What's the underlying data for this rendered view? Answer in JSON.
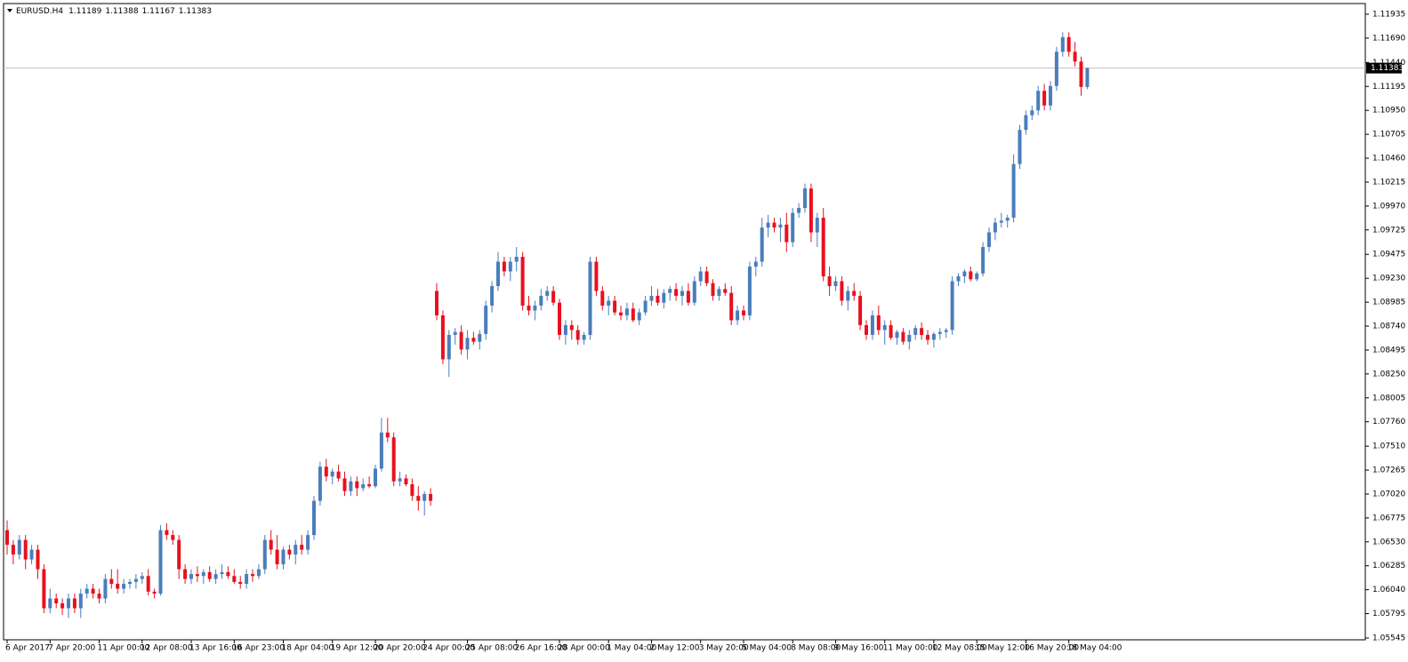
{
  "chart_data": {
    "type": "candlestick",
    "title": "EURUSD.H4",
    "header_values": [
      1.11189,
      1.11388,
      1.11167,
      1.11383
    ],
    "last_price": 1.11383,
    "up_color": "#4a7ebb",
    "down_color": "#e8101f",
    "last_price_line_color": "#c0c0c0",
    "ylim": [
      1.05527,
      1.12044
    ],
    "yticks": [
      1.11935,
      {
        "value": 1.1169,
        "label": "1.11690"
      },
      {
        "value": 1.1144,
        "label": "1.11440"
      },
      1.11195,
      {
        "value": 1.1095,
        "label": "1.10950"
      },
      1.10705,
      {
        "value": 1.1046,
        "label": "1.10460"
      },
      1.10215,
      {
        "value": 1.0997,
        "label": "1.09970"
      },
      1.09725,
      1.09475,
      {
        "value": 1.0923,
        "label": "1.09230"
      },
      1.08985,
      {
        "value": 1.0874,
        "label": "1.08740"
      },
      1.08495,
      {
        "value": 1.0825,
        "label": "1.08250"
      },
      1.08005,
      {
        "value": 1.0776,
        "label": "1.07760"
      },
      {
        "value": 1.0751,
        "label": "1.07510"
      },
      1.07265,
      {
        "value": 1.0702,
        "label": "1.07020"
      },
      1.06775,
      {
        "value": 1.0653,
        "label": "1.06530"
      },
      1.06285,
      {
        "value": 1.0604,
        "label": "1.06040"
      },
      1.05795,
      1.05545
    ],
    "categories": [
      "6 Apr 2017",
      null,
      null,
      null,
      null,
      null,
      null,
      "7 Apr 20:00",
      null,
      null,
      null,
      null,
      null,
      null,
      null,
      "11 Apr 00:00",
      null,
      null,
      null,
      null,
      null,
      null,
      "12 Apr 08:00",
      null,
      null,
      null,
      null,
      null,
      null,
      null,
      "13 Apr 16:00",
      null,
      null,
      null,
      null,
      null,
      null,
      "16 Apr 23:00",
      null,
      null,
      null,
      null,
      null,
      null,
      null,
      "18 Apr 04:00",
      null,
      null,
      null,
      null,
      null,
      null,
      null,
      "19 Apr 12:00",
      null,
      null,
      null,
      null,
      null,
      null,
      "20 Apr 20:00",
      null,
      null,
      null,
      null,
      null,
      null,
      null,
      "24 Apr 00:00",
      null,
      null,
      null,
      null,
      null,
      null,
      "25 Apr 08:00",
      null,
      null,
      null,
      null,
      null,
      null,
      null,
      "26 Apr 16:00",
      null,
      null,
      null,
      null,
      null,
      null,
      "28 Apr 00:00",
      null,
      null,
      null,
      null,
      null,
      null,
      null,
      "1 May 04:00",
      null,
      null,
      null,
      null,
      null,
      null,
      "2 May 12:00",
      null,
      null,
      null,
      null,
      null,
      null,
      null,
      "3 May 20:00",
      null,
      null,
      null,
      null,
      null,
      null,
      "5 May 04:00",
      null,
      null,
      null,
      null,
      null,
      null,
      null,
      "8 May 08:00",
      null,
      null,
      null,
      null,
      null,
      null,
      "9 May 16:00",
      null,
      null,
      null,
      null,
      null,
      null,
      null,
      "11 May 00:00",
      null,
      null,
      null,
      null,
      null,
      null,
      null,
      "12 May 08:00",
      null,
      null,
      null,
      null,
      null,
      null,
      "15 May 12:00",
      null,
      null,
      null,
      null,
      null,
      null,
      null,
      "16 May 20:00",
      null,
      null,
      null,
      null,
      null,
      null,
      "18 May 04:00",
      null,
      null,
      null
    ],
    "open": [
      1.0665,
      1.065,
      1.064,
      1.0655,
      1.0635,
      1.0645,
      1.0625,
      1.0585,
      1.0595,
      1.059,
      1.0585,
      1.0595,
      1.0585,
      1.06,
      1.0605,
      1.06,
      1.0595,
      1.0615,
      1.061,
      1.0605,
      1.061,
      1.0612,
      1.0615,
      1.0618,
      1.0602,
      1.06,
      1.0665,
      1.066,
      1.0655,
      1.0625,
      1.0615,
      1.062,
      1.0618,
      1.0622,
      1.0615,
      1.062,
      1.0622,
      1.0618,
      1.0612,
      1.061,
      1.062,
      1.0618,
      1.0625,
      1.0655,
      1.0645,
      1.063,
      1.0645,
      1.064,
      1.065,
      1.0645,
      1.066,
      1.0695,
      1.073,
      1.072,
      1.0725,
      1.0718,
      1.0705,
      1.0715,
      1.0708,
      1.0712,
      1.071,
      1.0728,
      1.0765,
      1.076,
      1.0715,
      1.0718,
      1.0712,
      1.07,
      1.0695,
      1.0702,
      1.091,
      1.0885,
      1.084,
      1.0865,
      1.0868,
      1.085,
      1.0862,
      1.0858,
      1.0866,
      1.0895,
      1.0915,
      1.094,
      1.093,
      1.094,
      1.0945,
      1.0895,
      1.089,
      1.0895,
      1.0905,
      1.091,
      1.0898,
      1.0865,
      1.0875,
      1.087,
      1.086,
      1.0865,
      1.094,
      1.091,
      1.0895,
      1.09,
      1.0888,
      1.0885,
      1.0892,
      1.088,
      1.0888,
      1.09,
      1.0905,
      1.0898,
      1.0908,
      1.0912,
      1.0905,
      1.091,
      1.0898,
      1.092,
      1.093,
      1.0918,
      1.0905,
      1.0912,
      1.0908,
      1.088,
      1.089,
      1.0885,
      1.0935,
      1.094,
      1.0975,
      1.098,
      1.0975,
      1.0978,
      1.096,
      1.099,
      1.0995,
      1.1015,
      1.097,
      1.0985,
      1.0925,
      1.0915,
      1.092,
      1.09,
      1.091,
      1.0905,
      1.0875,
      1.0865,
      1.0885,
      1.087,
      1.0875,
      1.0862,
      1.0868,
      1.0858,
      1.0865,
      1.0872,
      1.0865,
      1.086,
      1.0866,
      1.0868,
      1.087,
      1.092,
      1.0925,
      1.093,
      1.0922,
      1.0928,
      1.0955,
      1.097,
      1.098,
      1.0982,
      1.0985,
      1.104,
      1.1075,
      1.109,
      1.1095,
      1.1115,
      1.11,
      1.112,
      1.1155,
      1.117,
      1.1155,
      1.1145,
      1.11189
    ],
    "high": [
      1.0675,
      1.0655,
      1.066,
      1.066,
      1.065,
      1.065,
      1.063,
      1.0605,
      1.06,
      1.0595,
      1.06,
      1.06,
      1.0605,
      1.061,
      1.061,
      1.0605,
      1.062,
      1.0625,
      1.0625,
      1.0615,
      1.0615,
      1.062,
      1.0622,
      1.0625,
      1.0605,
      1.067,
      1.0672,
      1.0665,
      1.066,
      1.063,
      1.0625,
      1.0628,
      1.0625,
      1.0628,
      1.0625,
      1.063,
      1.0628,
      1.0625,
      1.0618,
      1.0625,
      1.0625,
      1.063,
      1.066,
      1.0665,
      1.066,
      1.0648,
      1.065,
      1.0655,
      1.066,
      1.0665,
      1.07,
      1.0735,
      1.0738,
      1.0728,
      1.0732,
      1.0725,
      1.072,
      1.072,
      1.0718,
      1.072,
      1.0732,
      1.078,
      1.078,
      1.0765,
      1.0725,
      1.0722,
      1.0718,
      1.071,
      1.0705,
      1.0708,
      1.0918,
      1.089,
      1.087,
      1.0872,
      1.0875,
      1.087,
      1.0868,
      1.087,
      1.09,
      1.092,
      1.095,
      1.0945,
      1.0945,
      1.0955,
      1.095,
      1.0905,
      1.09,
      1.0912,
      1.0915,
      1.0915,
      1.0902,
      1.088,
      1.088,
      1.0875,
      1.0868,
      1.0945,
      1.0945,
      1.0915,
      1.0905,
      1.0905,
      1.0895,
      1.0898,
      1.0898,
      1.0892,
      1.0905,
      1.0915,
      1.0912,
      1.0912,
      1.0915,
      1.0918,
      1.0915,
      1.0918,
      1.0925,
      1.0935,
      1.0935,
      1.0922,
      1.0915,
      1.0918,
      1.0915,
      1.0895,
      1.0895,
      1.094,
      1.0945,
      1.0985,
      1.0988,
      1.0985,
      1.0985,
      1.099,
      1.0995,
      1.1,
      1.102,
      1.102,
      1.099,
      1.0995,
      1.0935,
      1.0925,
      1.0925,
      1.0915,
      1.0918,
      1.091,
      1.088,
      1.089,
      1.0895,
      1.088,
      1.088,
      1.087,
      1.0872,
      1.087,
      1.0875,
      1.0878,
      1.087,
      1.0868,
      1.0872,
      1.0872,
      1.0925,
      1.0928,
      1.0932,
      1.0935,
      1.093,
      1.096,
      1.0975,
      1.0985,
      1.099,
      1.0988,
      1.105,
      1.108,
      1.1095,
      1.11,
      1.112,
      1.1122,
      1.1125,
      1.116,
      1.1175,
      1.1175,
      1.1165,
      1.115,
      1.11388
    ],
    "low": [
      1.064,
      1.063,
      1.0635,
      1.0625,
      1.063,
      1.0615,
      1.058,
      1.058,
      1.0585,
      1.0578,
      1.0575,
      1.058,
      1.0575,
      1.0595,
      1.0595,
      1.059,
      1.059,
      1.0605,
      1.06,
      1.06,
      1.0605,
      1.0605,
      1.061,
      1.0598,
      1.0595,
      1.0598,
      1.0655,
      1.065,
      1.0615,
      1.061,
      1.061,
      1.0612,
      1.061,
      1.0612,
      1.061,
      1.0615,
      1.0615,
      1.061,
      1.0605,
      1.0605,
      1.0612,
      1.0615,
      1.062,
      1.064,
      1.0625,
      1.0625,
      1.0635,
      1.063,
      1.064,
      1.064,
      1.0655,
      1.069,
      1.0715,
      1.0712,
      1.0715,
      1.07,
      1.07,
      1.07,
      1.0705,
      1.0708,
      1.0708,
      1.0725,
      1.0755,
      1.071,
      1.071,
      1.071,
      1.0695,
      1.0685,
      1.068,
      1.069,
      1.088,
      1.0835,
      1.0822,
      1.0855,
      1.0845,
      1.084,
      1.0855,
      1.085,
      1.086,
      1.0888,
      1.091,
      1.0925,
      1.092,
      1.093,
      1.089,
      1.0885,
      1.088,
      1.089,
      1.09,
      1.0895,
      1.086,
      1.0855,
      1.086,
      1.0855,
      1.0855,
      1.086,
      1.0905,
      1.089,
      1.0885,
      1.0885,
      1.088,
      1.088,
      1.0878,
      1.0875,
      1.0885,
      1.0895,
      1.0895,
      1.0892,
      1.09,
      1.09,
      1.0895,
      1.0895,
      1.0895,
      1.0915,
      1.0915,
      1.09,
      1.09,
      1.0905,
      1.0875,
      1.0875,
      1.088,
      1.088,
      1.0925,
      1.0935,
      1.0965,
      1.097,
      1.096,
      1.095,
      1.0955,
      1.0985,
      1.099,
      1.096,
      1.0955,
      1.092,
      1.0905,
      1.091,
      1.0895,
      1.089,
      1.09,
      1.087,
      1.086,
      1.086,
      1.0865,
      1.0855,
      1.086,
      1.0855,
      1.0855,
      1.085,
      1.086,
      1.086,
      1.0855,
      1.0852,
      1.086,
      1.0862,
      1.0865,
      1.0915,
      1.0918,
      1.092,
      1.092,
      1.0925,
      1.095,
      1.0962,
      1.0975,
      1.0975,
      1.098,
      1.1035,
      1.107,
      1.1085,
      1.109,
      1.1095,
      1.1095,
      1.1115,
      1.115,
      1.115,
      1.114,
      1.111,
      1.11167
    ],
    "close": [
      1.065,
      1.064,
      1.0655,
      1.0635,
      1.0645,
      1.0625,
      1.0585,
      1.0595,
      1.059,
      1.0585,
      1.0595,
      1.0585,
      1.06,
      1.0605,
      1.06,
      1.0595,
      1.0615,
      1.061,
      1.0605,
      1.061,
      1.0612,
      1.0615,
      1.0618,
      1.0602,
      1.06,
      1.0665,
      1.066,
      1.0655,
      1.0625,
      1.0615,
      1.062,
      1.0618,
      1.0622,
      1.0615,
      1.062,
      1.0622,
      1.0618,
      1.0612,
      1.061,
      1.062,
      1.0618,
      1.0625,
      1.0655,
      1.0645,
      1.063,
      1.0645,
      1.064,
      1.065,
      1.0645,
      1.066,
      1.0695,
      1.073,
      1.072,
      1.0725,
      1.0718,
      1.0705,
      1.0715,
      1.0708,
      1.0712,
      1.071,
      1.0728,
      1.0765,
      1.076,
      1.0715,
      1.0718,
      1.0712,
      1.07,
      1.0695,
      1.0702,
      1.0695,
      1.0885,
      1.084,
      1.0865,
      1.0868,
      1.085,
      1.0862,
      1.0858,
      1.0866,
      1.0895,
      1.0915,
      1.094,
      1.093,
      1.094,
      1.0945,
      1.0895,
      1.089,
      1.0895,
      1.0905,
      1.091,
      1.0898,
      1.0865,
      1.0875,
      1.087,
      1.086,
      1.0865,
      1.094,
      1.091,
      1.0895,
      1.09,
      1.0888,
      1.0885,
      1.0892,
      1.088,
      1.0888,
      1.09,
      1.0905,
      1.0898,
      1.0908,
      1.0912,
      1.0905,
      1.091,
      1.0898,
      1.092,
      1.093,
      1.0918,
      1.0905,
      1.0912,
      1.0908,
      1.088,
      1.089,
      1.0885,
      1.0935,
      1.094,
      1.0975,
      1.098,
      1.0975,
      1.0978,
      1.096,
      1.099,
      1.0995,
      1.1015,
      1.097,
      1.0985,
      1.0925,
      1.0915,
      1.092,
      1.09,
      1.091,
      1.0905,
      1.0875,
      1.0865,
      1.0885,
      1.087,
      1.0875,
      1.0862,
      1.0868,
      1.0858,
      1.0865,
      1.0872,
      1.0865,
      1.086,
      1.0866,
      1.0868,
      1.087,
      1.092,
      1.0925,
      1.093,
      1.0922,
      1.0928,
      1.0955,
      1.097,
      1.098,
      1.0982,
      1.0985,
      1.104,
      1.1075,
      1.109,
      1.1095,
      1.1115,
      1.11,
      1.112,
      1.1155,
      1.117,
      1.1155,
      1.1145,
      1.1119,
      1.11383
    ]
  }
}
